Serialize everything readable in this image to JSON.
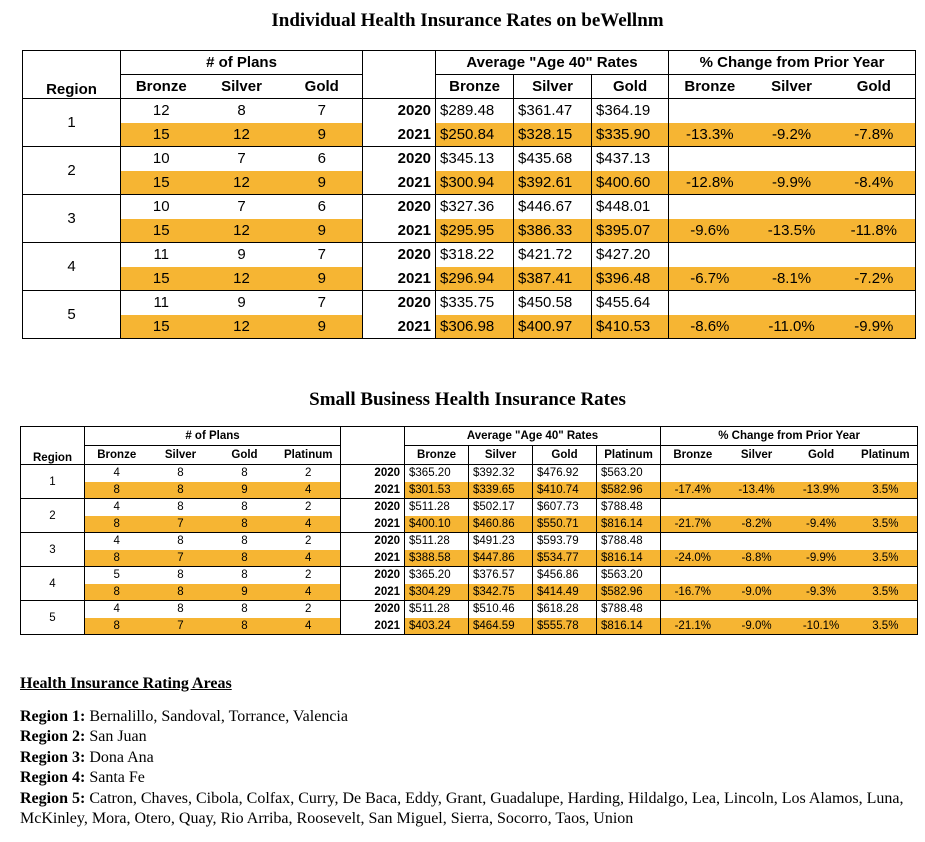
{
  "table1": {
    "title": "Individual Health Insurance Rates on beWellnm",
    "region_header": "Region",
    "groups": [
      {
        "label": "# of Plans",
        "columns": [
          "Bronze",
          "Silver",
          "Gold"
        ]
      },
      {
        "label": "Average \"Age 40\" Rates",
        "columns": [
          "Bronze",
          "Silver",
          "Gold"
        ]
      },
      {
        "label": "% Change from Prior Year",
        "columns": [
          "Bronze",
          "Silver",
          "Gold"
        ]
      }
    ],
    "regions": [
      {
        "region": 1,
        "rows": [
          {
            "year": 2020,
            "plans": [
              12,
              8,
              7
            ],
            "rates": [
              "$289.48",
              "$361.47",
              "$364.19"
            ]
          },
          {
            "year": 2021,
            "plans": [
              15,
              12,
              9
            ],
            "rates": [
              "$250.84",
              "$328.15",
              "$335.90"
            ],
            "change": [
              "-13.3%",
              "-9.2%",
              "-7.8%"
            ]
          }
        ]
      },
      {
        "region": 2,
        "rows": [
          {
            "year": 2020,
            "plans": [
              10,
              7,
              6
            ],
            "rates": [
              "$345.13",
              "$435.68",
              "$437.13"
            ]
          },
          {
            "year": 2021,
            "plans": [
              15,
              12,
              9
            ],
            "rates": [
              "$300.94",
              "$392.61",
              "$400.60"
            ],
            "change": [
              "-12.8%",
              "-9.9%",
              "-8.4%"
            ]
          }
        ]
      },
      {
        "region": 3,
        "rows": [
          {
            "year": 2020,
            "plans": [
              10,
              7,
              6
            ],
            "rates": [
              "$327.36",
              "$446.67",
              "$448.01"
            ]
          },
          {
            "year": 2021,
            "plans": [
              15,
              12,
              9
            ],
            "rates": [
              "$295.95",
              "$386.33",
              "$395.07"
            ],
            "change": [
              "-9.6%",
              "-13.5%",
              "-11.8%"
            ]
          }
        ]
      },
      {
        "region": 4,
        "rows": [
          {
            "year": 2020,
            "plans": [
              11,
              9,
              7
            ],
            "rates": [
              "$318.22",
              "$421.72",
              "$427.20"
            ]
          },
          {
            "year": 2021,
            "plans": [
              15,
              12,
              9
            ],
            "rates": [
              "$296.94",
              "$387.41",
              "$396.48"
            ],
            "change": [
              "-6.7%",
              "-8.1%",
              "-7.2%"
            ]
          }
        ]
      },
      {
        "region": 5,
        "rows": [
          {
            "year": 2020,
            "plans": [
              11,
              9,
              7
            ],
            "rates": [
              "$335.75",
              "$450.58",
              "$455.64"
            ]
          },
          {
            "year": 2021,
            "plans": [
              15,
              12,
              9
            ],
            "rates": [
              "$306.98",
              "$400.97",
              "$410.53"
            ],
            "change": [
              "-8.6%",
              "-11.0%",
              "-9.9%"
            ]
          }
        ]
      }
    ]
  },
  "table2": {
    "title": "Small Business Health Insurance Rates",
    "region_header": "Region",
    "groups": [
      {
        "label": "# of Plans",
        "columns": [
          "Bronze",
          "Silver",
          "Gold",
          "Platinum"
        ]
      },
      {
        "label": "Average \"Age 40\" Rates",
        "columns": [
          "Bronze",
          "Silver",
          "Gold",
          "Platinum"
        ]
      },
      {
        "label": "% Change from Prior Year",
        "columns": [
          "Bronze",
          "Silver",
          "Gold",
          "Platinum"
        ]
      }
    ],
    "regions": [
      {
        "region": 1,
        "rows": [
          {
            "year": 2020,
            "plans": [
              4,
              8,
              8,
              2
            ],
            "rates": [
              "$365.20",
              "$392.32",
              "$476.92",
              "$563.20"
            ]
          },
          {
            "year": 2021,
            "plans": [
              8,
              8,
              9,
              4
            ],
            "rates": [
              "$301.53",
              "$339.65",
              "$410.74",
              "$582.96"
            ],
            "change": [
              "-17.4%",
              "-13.4%",
              "-13.9%",
              "3.5%"
            ]
          }
        ]
      },
      {
        "region": 2,
        "rows": [
          {
            "year": 2020,
            "plans": [
              4,
              8,
              8,
              2
            ],
            "rates": [
              "$511.28",
              "$502.17",
              "$607.73",
              "$788.48"
            ]
          },
          {
            "year": 2021,
            "plans": [
              8,
              7,
              8,
              4
            ],
            "rates": [
              "$400.10",
              "$460.86",
              "$550.71",
              "$816.14"
            ],
            "change": [
              "-21.7%",
              "-8.2%",
              "-9.4%",
              "3.5%"
            ]
          }
        ]
      },
      {
        "region": 3,
        "rows": [
          {
            "year": 2020,
            "plans": [
              4,
              8,
              8,
              2
            ],
            "rates": [
              "$511.28",
              "$491.23",
              "$593.79",
              "$788.48"
            ]
          },
          {
            "year": 2021,
            "plans": [
              8,
              7,
              8,
              4
            ],
            "rates": [
              "$388.58",
              "$447.86",
              "$534.77",
              "$816.14"
            ],
            "change": [
              "-24.0%",
              "-8.8%",
              "-9.9%",
              "3.5%"
            ]
          }
        ]
      },
      {
        "region": 4,
        "rows": [
          {
            "year": 2020,
            "plans": [
              5,
              8,
              8,
              2
            ],
            "rates": [
              "$365.20",
              "$376.57",
              "$456.86",
              "$563.20"
            ]
          },
          {
            "year": 2021,
            "plans": [
              8,
              8,
              9,
              4
            ],
            "rates": [
              "$304.29",
              "$342.75",
              "$414.49",
              "$582.96"
            ],
            "change": [
              "-16.7%",
              "-9.0%",
              "-9.3%",
              "3.5%"
            ]
          }
        ]
      },
      {
        "region": 5,
        "rows": [
          {
            "year": 2020,
            "plans": [
              4,
              8,
              8,
              2
            ],
            "rates": [
              "$511.28",
              "$510.46",
              "$618.28",
              "$788.48"
            ]
          },
          {
            "year": 2021,
            "plans": [
              8,
              7,
              8,
              4
            ],
            "rates": [
              "$403.24",
              "$464.59",
              "$555.78",
              "$816.14"
            ],
            "change": [
              "-21.1%",
              "-9.0%",
              "-10.1%",
              "3.5%"
            ]
          }
        ]
      }
    ]
  },
  "areas": {
    "heading": "Health Insurance Rating Areas",
    "items": [
      {
        "label": "Region 1:",
        "counties": "Bernalillo, Sandoval, Torrance, Valencia"
      },
      {
        "label": "Region 2:",
        "counties": "San Juan"
      },
      {
        "label": "Region 3:",
        "counties": "Dona Ana"
      },
      {
        "label": "Region 4:",
        "counties": "Santa Fe"
      },
      {
        "label": "Region 5:",
        "counties": "Catron, Chaves, Cibola, Colfax, Curry, De Baca, Eddy, Grant, Guadalupe, Harding, Hildalgo, Lea, Lincoln, Los Alamos, Luna, McKinley, Mora, Otero, Quay, Rio Arriba, Roosevelt, San Miguel, Sierra, Socorro, Taos, Union"
      }
    ]
  }
}
